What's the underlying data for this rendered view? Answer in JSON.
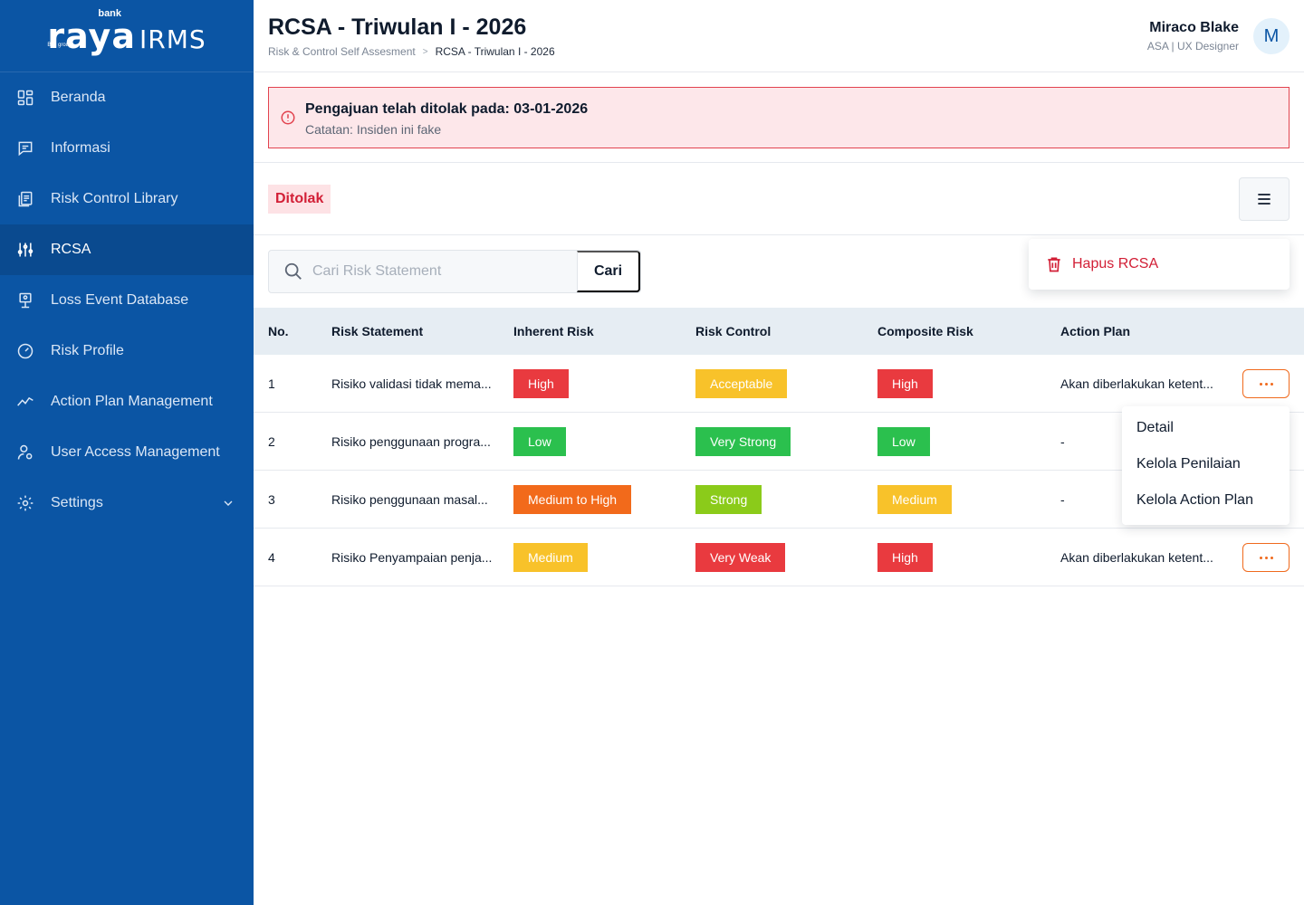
{
  "sidebar": {
    "logo": {
      "brand_small": "bank",
      "brand_main": "raya",
      "product": "IRMS",
      "group": "BRI group"
    },
    "items": [
      {
        "label": "Beranda",
        "icon": "dashboard-grid-icon"
      },
      {
        "label": "Informasi",
        "icon": "message-info-icon"
      },
      {
        "label": "Risk Control Library",
        "icon": "library-icon"
      },
      {
        "label": "RCSA",
        "icon": "sliders-icon",
        "active": true
      },
      {
        "label": "Loss Event Database",
        "icon": "monitor-database-icon"
      },
      {
        "label": "Risk Profile",
        "icon": "gauge-icon"
      },
      {
        "label": "Action Plan Management",
        "icon": "trend-line-icon"
      },
      {
        "label": "User Access Management",
        "icon": "user-gear-icon"
      },
      {
        "label": "Settings",
        "icon": "gear-icon",
        "expandable": true
      }
    ]
  },
  "header": {
    "title": "RCSA - Triwulan I - 2026",
    "breadcrumb": [
      "Risk & Control Self Assesment",
      "RCSA - Triwulan I - 2026"
    ],
    "breadcrumb_separator": ">",
    "user": {
      "name": "Miraco Blake",
      "role": "ASA | UX Designer",
      "initial": "M"
    }
  },
  "alert": {
    "title": "Pengajuan telah ditolak pada: 03-01-2026",
    "note": "Catatan: Insiden ini fake"
  },
  "status": {
    "label": "Ditolak"
  },
  "actions_menu": {
    "delete_label": "Hapus RCSA"
  },
  "search": {
    "placeholder": "Cari Risk Statement",
    "value": "",
    "button_label": "Cari"
  },
  "table": {
    "headers": [
      "No.",
      "Risk Statement",
      "Inherent Risk",
      "Risk Control",
      "Composite Risk",
      "Action Plan"
    ],
    "rows": [
      {
        "no": "1",
        "statement": "Risiko validasi tidak mema...",
        "inherent": "High",
        "control": "Acceptable",
        "composite": "High",
        "action_plan": "Akan diberlakukan ketent...",
        "has_menu": true
      },
      {
        "no": "2",
        "statement": "Risiko penggunaan progra...",
        "inherent": "Low",
        "control": "Very Strong",
        "composite": "Low",
        "action_plan": "-",
        "has_menu": false
      },
      {
        "no": "3",
        "statement": "Risiko penggunaan masal...",
        "inherent": "Medium to High",
        "control": "Strong",
        "composite": "Medium",
        "action_plan": "-",
        "has_menu": false
      },
      {
        "no": "4",
        "statement": "Risiko Penyampaian penja...",
        "inherent": "Medium",
        "control": "Very Weak",
        "composite": "High",
        "action_plan": "Akan diberlakukan ketent...",
        "has_menu": true
      }
    ]
  },
  "row_menu": {
    "items": [
      "Detail",
      "Kelola Penilaian",
      "Kelola Action Plan"
    ]
  },
  "colors": {
    "sidebar_bg": "#0b55a4",
    "sidebar_active": "#0a4a8f",
    "danger": "#d21f36",
    "accent_orange": "#f06a1d",
    "level_colors": {
      "High": "#e93a3f",
      "Low": "#2bc04e",
      "Medium to High": "#f26a1b",
      "Medium": "#f8c22a",
      "Acceptable": "#f8c22a",
      "Very Strong": "#2bc04e",
      "Strong": "#8bcb1a",
      "Very Weak": "#e93a3f"
    }
  }
}
